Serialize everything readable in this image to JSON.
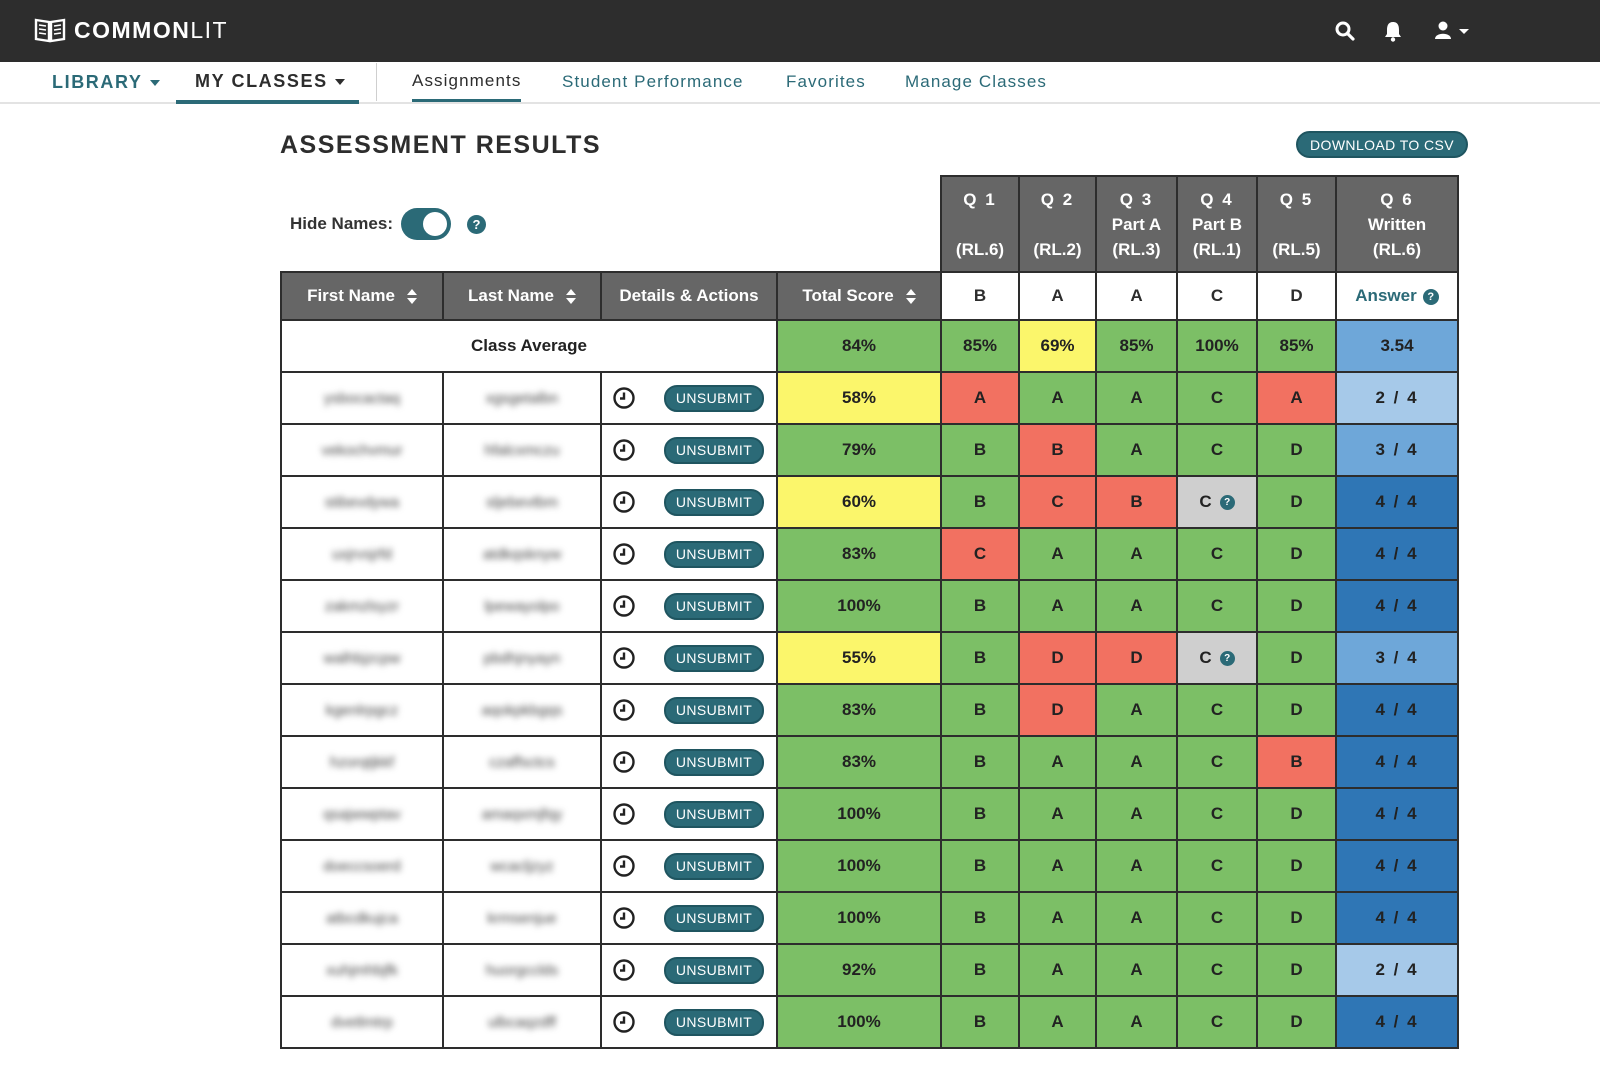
{
  "brand": {
    "bold": "COMMON",
    "light": "LIT"
  },
  "topbar_icons": [
    "search-icon",
    "bell-icon",
    "user-icon"
  ],
  "nav": {
    "library": "LIBRARY",
    "my_classes": "MY CLASSES",
    "tabs": [
      {
        "label": "Assignments",
        "active": true
      },
      {
        "label": "Student Performance",
        "active": false
      },
      {
        "label": "Favorites",
        "active": false
      },
      {
        "label": "Manage Classes",
        "active": false
      }
    ]
  },
  "page": {
    "title": "ASSESSMENT RESULTS",
    "download_label": "DOWNLOAD TO CSV",
    "hide_names_label": "Hide Names:",
    "hide_names_on": true,
    "help_glyph": "?"
  },
  "questions": [
    {
      "num": "Q 1",
      "part": "",
      "standard": "(RL.6)",
      "answer": "B"
    },
    {
      "num": "Q 2",
      "part": "",
      "standard": "(RL.2)",
      "answer": "A"
    },
    {
      "num": "Q 3",
      "part": "Part A",
      "standard": "(RL.3)",
      "answer": "A"
    },
    {
      "num": "Q 4",
      "part": "Part B",
      "standard": "(RL.1)",
      "answer": "C"
    },
    {
      "num": "Q 5",
      "part": "",
      "standard": "(RL.5)",
      "answer": "D"
    },
    {
      "num": "Q 6",
      "part": "Written",
      "standard": "(RL.6)",
      "answer": "Answer"
    }
  ],
  "table": {
    "headers": {
      "first": "First Name",
      "last": "Last Name",
      "details": "Details & Actions",
      "total": "Total Score"
    },
    "unsubmit_label": "UNSUBMIT",
    "class_average": {
      "label": "Class Average",
      "total": "84%",
      "q": [
        "85%",
        "69%",
        "85%",
        "100%",
        "85%",
        "3.54"
      ]
    },
    "rows": [
      {
        "first": "ysbocactaq",
        "last": "xgsgetalbn",
        "total": "58%",
        "answers": [
          "A",
          "A",
          "A",
          "C",
          "A"
        ],
        "flags": [
          false,
          false,
          false,
          false,
          false
        ],
        "written": "2 / 4"
      },
      {
        "first": "vekochvmur",
        "last": "hfalcxmczu",
        "total": "79%",
        "answers": [
          "B",
          "B",
          "A",
          "C",
          "D"
        ],
        "flags": [
          false,
          false,
          false,
          false,
          false
        ],
        "written": "3 / 4"
      },
      {
        "first": "stibevdywa",
        "last": "sljebevtbm",
        "total": "60%",
        "answers": [
          "B",
          "C",
          "B",
          "C",
          "D"
        ],
        "flags": [
          false,
          false,
          false,
          true,
          false
        ],
        "written": "4 / 4"
      },
      {
        "first": "uxjrvsjrfd",
        "last": "atdkqsknyw",
        "total": "83%",
        "answers": [
          "C",
          "A",
          "A",
          "C",
          "D"
        ],
        "flags": [
          false,
          false,
          false,
          false,
          false
        ],
        "written": "4 / 4"
      },
      {
        "first": "zakmzlsyzr",
        "last": "lpewayolpo",
        "total": "100%",
        "answers": [
          "B",
          "A",
          "A",
          "C",
          "D"
        ],
        "flags": [
          false,
          false,
          false,
          false,
          false
        ],
        "written": "4 / 4"
      },
      {
        "first": "walhbjzcpw",
        "last": "pbdhjnyayn",
        "total": "55%",
        "answers": [
          "B",
          "D",
          "D",
          "C",
          "D"
        ],
        "flags": [
          false,
          false,
          false,
          true,
          false
        ],
        "written": "3 / 4"
      },
      {
        "first": "kgenlrpgcz",
        "last": "aqokpkbgqs",
        "total": "83%",
        "answers": [
          "B",
          "D",
          "A",
          "C",
          "D"
        ],
        "flags": [
          false,
          false,
          false,
          false,
          false
        ],
        "written": "4 / 4"
      },
      {
        "first": "hzorqtjkkf",
        "last": "czaffsctcs",
        "total": "83%",
        "answers": [
          "B",
          "A",
          "A",
          "C",
          "B"
        ],
        "flags": [
          false,
          false,
          false,
          false,
          false
        ],
        "written": "4 / 4"
      },
      {
        "first": "qsajwwptav",
        "last": "amaqxmjfqy",
        "total": "100%",
        "answers": [
          "B",
          "A",
          "A",
          "C",
          "D"
        ],
        "flags": [
          false,
          false,
          false,
          false,
          false
        ],
        "written": "4 / 4"
      },
      {
        "first": "doeccsoerd",
        "last": "wcacljzyz",
        "total": "100%",
        "answers": [
          "B",
          "A",
          "A",
          "C",
          "D"
        ],
        "flags": [
          false,
          false,
          false,
          false,
          false
        ],
        "written": "4 / 4"
      },
      {
        "first": "atbcdkujca",
        "last": "krmsenjue",
        "total": "100%",
        "answers": [
          "B",
          "A",
          "A",
          "C",
          "D"
        ],
        "flags": [
          false,
          false,
          false,
          false,
          false
        ],
        "written": "4 / 4"
      },
      {
        "first": "xuhjmhbjfk",
        "last": "huorgcclds",
        "total": "92%",
        "answers": [
          "B",
          "A",
          "A",
          "C",
          "D"
        ],
        "flags": [
          false,
          false,
          false,
          false,
          false
        ],
        "written": "2 / 4"
      },
      {
        "first": "dvetlmtrp",
        "last": "ulbcaqzdff",
        "total": "100%",
        "answers": [
          "B",
          "A",
          "A",
          "C",
          "D"
        ],
        "flags": [
          false,
          false,
          false,
          false,
          false
        ],
        "written": "4 / 4"
      }
    ]
  },
  "colors": {
    "teal": "#2b6a77",
    "correct": "#7cbf66",
    "warning": "#fbf66b",
    "incorrect": "#f27161",
    "flagged": "#cfcfcf",
    "written_full": "#2f76b5",
    "written_mid": "#6ea7d9",
    "written_low": "#a6c9e9"
  }
}
